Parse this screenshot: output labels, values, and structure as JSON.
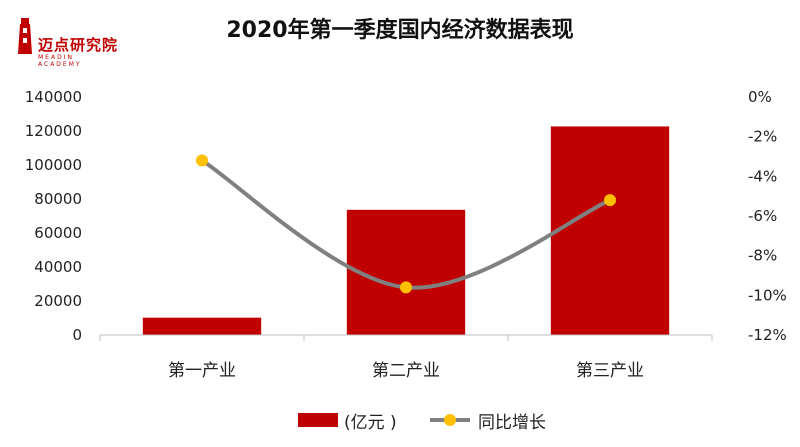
{
  "logo": {
    "text": "迈点研究院",
    "subtext": "MEADIN ACADEMY"
  },
  "colors": {
    "bar": "#c00000",
    "line": "#808080",
    "marker": "#ffc000",
    "axis": "#bfbfbf"
  },
  "chart_data": {
    "type": "bar",
    "title": "2020年第一季度国内经济数据表现",
    "categories": [
      "第一产业",
      "第二产业",
      "第三产业"
    ],
    "series": [
      {
        "name": "(亿元 )",
        "type": "bar",
        "axis": "left",
        "values": [
          10186,
          73638,
          122680
        ]
      },
      {
        "name": "同比增长",
        "type": "line",
        "axis": "right",
        "values": [
          -3.2,
          -9.6,
          -5.2
        ]
      }
    ],
    "y_left": {
      "min": 0,
      "max": 140000,
      "ticks": [
        "0",
        "20000",
        "40000",
        "60000",
        "80000",
        "100000",
        "120000",
        "140000"
      ]
    },
    "y_right": {
      "min": -12,
      "max": 0,
      "ticks": [
        "0%",
        "-2%",
        "-4%",
        "-6%",
        "-8%",
        "-10%",
        "-12%"
      ]
    },
    "legend": {
      "position": "bottom",
      "entries": [
        "(亿元 )",
        "同比增长"
      ]
    },
    "grid": false
  }
}
